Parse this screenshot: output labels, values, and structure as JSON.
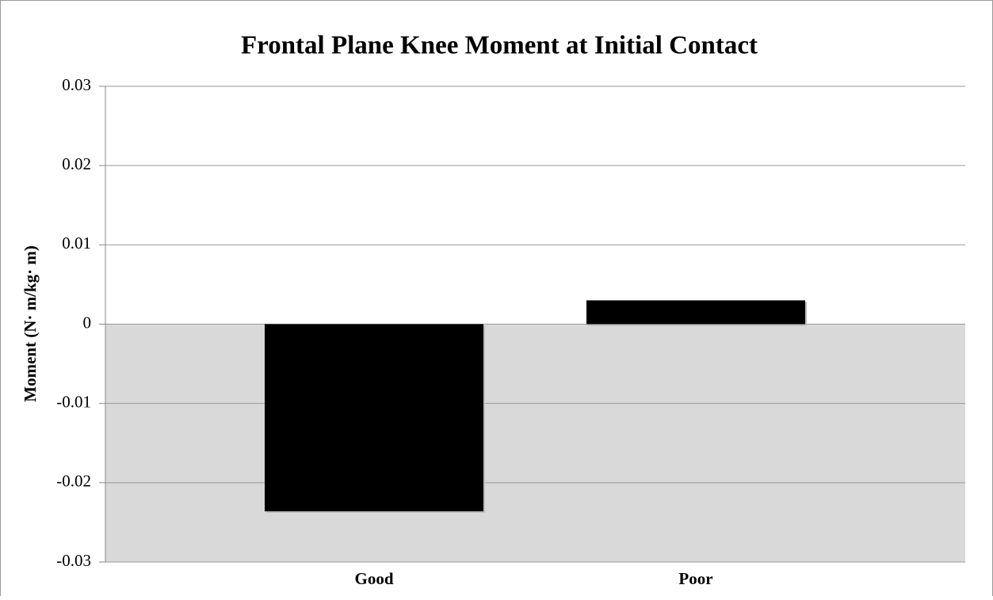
{
  "chart_data": {
    "type": "bar",
    "title": "Frontal Plane Knee Moment at Initial Contact",
    "y_label": "Moment (N· m/kg· m)",
    "categories": [
      "Good",
      "Poor"
    ],
    "values": [
      -0.0236,
      0.003
    ],
    "color": "#000000",
    "ylim": [
      -0.03,
      0.03
    ],
    "yticks": [
      -0.03,
      -0.02,
      -0.01,
      0,
      0.01,
      0.02,
      0.03
    ],
    "grid": true
  }
}
